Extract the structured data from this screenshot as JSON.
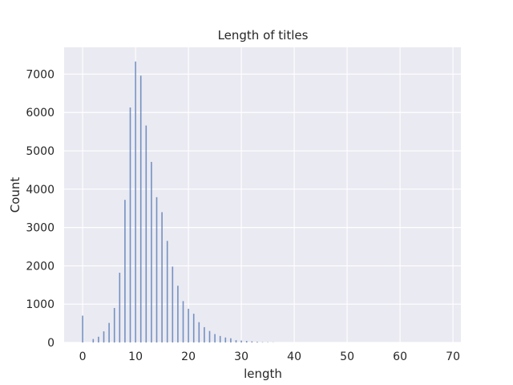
{
  "chart_data": {
    "type": "bar",
    "title": "Length of titles",
    "xlabel": "length",
    "ylabel": "Count",
    "xlim": [
      -3.5,
      71.5
    ],
    "ylim": [
      0,
      7700
    ],
    "x_ticks": [
      0,
      10,
      20,
      30,
      40,
      50,
      60,
      70
    ],
    "y_ticks": [
      0,
      1000,
      2000,
      3000,
      4000,
      5000,
      6000,
      7000
    ],
    "grid": true,
    "background": "#eaeaf2",
    "bar_color": "#4c72b0",
    "series": [
      {
        "x": [
          0,
          2,
          3,
          4,
          5,
          6,
          7,
          8,
          9,
          10,
          11,
          12,
          13,
          14,
          15,
          16,
          17,
          18,
          19,
          20,
          21,
          22,
          23,
          24,
          25,
          26,
          27,
          28,
          29,
          30,
          31,
          32,
          33,
          34,
          35,
          36
        ],
        "values": [
          700,
          90,
          150,
          290,
          510,
          900,
          1820,
          3720,
          6130,
          7330,
          6960,
          5660,
          4710,
          3790,
          3400,
          2650,
          1980,
          1480,
          1080,
          880,
          750,
          530,
          400,
          300,
          220,
          170,
          130,
          110,
          60,
          50,
          40,
          30,
          20,
          10,
          8,
          5
        ]
      }
    ]
  }
}
